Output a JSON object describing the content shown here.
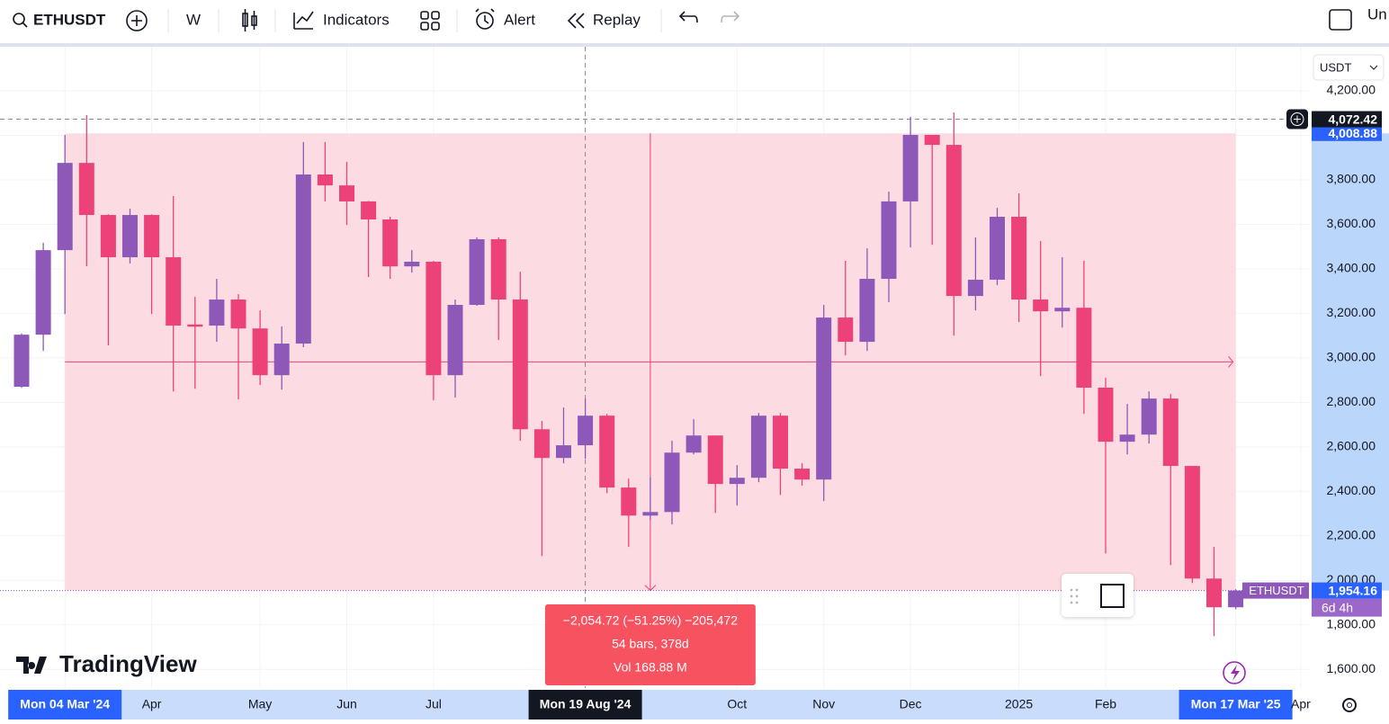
{
  "toolbar": {
    "symbol": "ETHUSDT",
    "interval": "W",
    "indicators": "Indicators",
    "alert": "Alert",
    "replay": "Replay",
    "layout_name": "Un"
  },
  "chart_data": {
    "type": "candlestick",
    "symbol": "ETHUSDT",
    "currency": "USDT",
    "brand": "TradingView",
    "categories": [
      null,
      null,
      "Mon 04 Mar '24",
      null,
      null,
      null,
      "Apr",
      null,
      null,
      null,
      null,
      "May",
      null,
      null,
      null,
      "Jun",
      null,
      null,
      null,
      "Jul",
      null,
      null,
      null,
      null,
      null,
      null,
      "Mon 19 Aug '24",
      null,
      null,
      null,
      null,
      null,
      null,
      "Oct",
      null,
      null,
      null,
      "Nov",
      null,
      null,
      null,
      "Dec",
      null,
      null,
      null,
      null,
      "2025",
      null,
      null,
      null,
      "Feb",
      null,
      null,
      null,
      null,
      null,
      "Mon 17 Mar '25"
    ],
    "future_label": "Apr",
    "open": [
      2870,
      3104,
      3484,
      3876,
      3642,
      3452,
      3642,
      3452,
      3150,
      3145,
      3262,
      3132,
      2922,
      3064,
      3824,
      3775,
      3703,
      3622,
      3411,
      3432,
      2922,
      3238,
      3533,
      3262,
      2679,
      2550,
      2607,
      2740,
      2417,
      2291,
      2307,
      2574,
      2651,
      2433,
      2461,
      2740,
      2502,
      2453,
      3181,
      3072,
      3355,
      3703,
      4002,
      3957,
      3278,
      3351,
      3634,
      3262,
      3209,
      3225,
      2866,
      2623,
      2655,
      2817,
      2514,
      2008,
      1879
    ],
    "high": [
      3110,
      3517,
      4002,
      4091,
      3645,
      3670,
      3645,
      3727,
      3274,
      3355,
      3286,
      3213,
      3141,
      3970,
      3970,
      3881,
      3705,
      3634,
      3484,
      3436,
      3262,
      3541,
      3541,
      3387,
      2716,
      2777,
      2817,
      2748,
      2457,
      2461,
      2627,
      2724,
      2651,
      2518,
      2752,
      2752,
      2526,
      3238,
      3436,
      3492,
      3747,
      4083,
      4002,
      4103,
      3541,
      3674,
      3739,
      3525,
      3452,
      3436,
      2910,
      2793,
      2849,
      2837,
      2514,
      2150,
      1960
    ],
    "low": [
      2865,
      3031,
      3197,
      3411,
      3056,
      3424,
      3197,
      2849,
      2861,
      3072,
      2813,
      2878,
      2857,
      3048,
      3703,
      3597,
      3363,
      3355,
      3383,
      2809,
      2821,
      3234,
      3080,
      2627,
      2109,
      2526,
      2546,
      2392,
      2150,
      2271,
      2251,
      2566,
      2303,
      2336,
      2441,
      2384,
      2425,
      2356,
      3011,
      3031,
      3250,
      3496,
      3508,
      3100,
      3213,
      3327,
      3161,
      2918,
      3136,
      2748,
      2121,
      2566,
      2615,
      2069,
      1988,
      1749,
      1870
    ],
    "close": [
      3104,
      3484,
      3876,
      3642,
      3452,
      3642,
      3452,
      3145,
      3140,
      3262,
      3132,
      2922,
      3064,
      3824,
      3775,
      3703,
      3622,
      3411,
      3432,
      2922,
      3238,
      3533,
      3262,
      2679,
      2550,
      2607,
      2740,
      2417,
      2291,
      2307,
      2574,
      2651,
      2433,
      2461,
      2740,
      2502,
      2453,
      3181,
      3072,
      3355,
      3703,
      4002,
      3957,
      3278,
      3351,
      3634,
      3262,
      3209,
      3225,
      2866,
      2623,
      2655,
      2817,
      2514,
      2008,
      1879,
      1954.16
    ],
    "up_color": "#8e58b8",
    "down_color": "#ec4279",
    "ylim": [
      1516,
      4398
    ],
    "yticks": [
      {
        "value": 1600,
        "label": "1,600.00"
      },
      {
        "value": 1800,
        "label": "1,800.00"
      },
      {
        "value": 2000,
        "label": "2,000.00"
      },
      {
        "value": 2200,
        "label": "2,200.00"
      },
      {
        "value": 2400,
        "label": "2,400.00"
      },
      {
        "value": 2600,
        "label": "2,600.00"
      },
      {
        "value": 2800,
        "label": "2,800.00"
      },
      {
        "value": 3000,
        "label": "3,000.00"
      },
      {
        "value": 3200,
        "label": "3,200.00"
      },
      {
        "value": 3400,
        "label": "3,400.00"
      },
      {
        "value": 3600,
        "label": "3,600.00"
      },
      {
        "value": 3800,
        "label": "3,800.00"
      },
      {
        "value": 4000,
        "label": "4,000.00"
      },
      {
        "value": 4200,
        "label": "4,200.00"
      }
    ],
    "grid": true,
    "current_price": {
      "value": 1954.16,
      "label": "1,954.16"
    },
    "countdown": "6d 4h",
    "crosshair_price": {
      "value": 4072.42,
      "label": "4,072.42"
    },
    "range": {
      "top": {
        "value": 4008.88,
        "label": "4,008.88"
      },
      "bottom": 1954.16,
      "change": "−2,054.72 (−51.25%) −205,472",
      "bars": "54 bars, 378d",
      "volume": "Vol 168.88 M",
      "color": "#fcdce2"
    }
  }
}
